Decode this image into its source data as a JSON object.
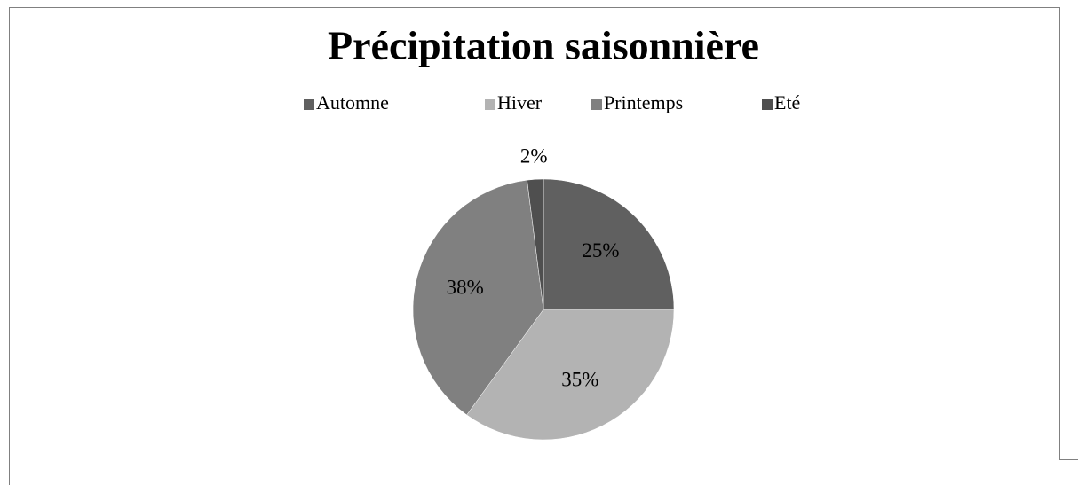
{
  "chart_data": {
    "type": "pie",
    "title": "Précipitation saisonnière",
    "categories": [
      "Automne",
      "Hiver",
      "Printemps",
      "Eté"
    ],
    "values": [
      25,
      35,
      38,
      2
    ],
    "value_labels": [
      "25%",
      "35%",
      "38%",
      "2%"
    ],
    "colors": [
      "#606060",
      "#b3b3b3",
      "#808080",
      "#4f4f4f"
    ],
    "legend": "top"
  }
}
